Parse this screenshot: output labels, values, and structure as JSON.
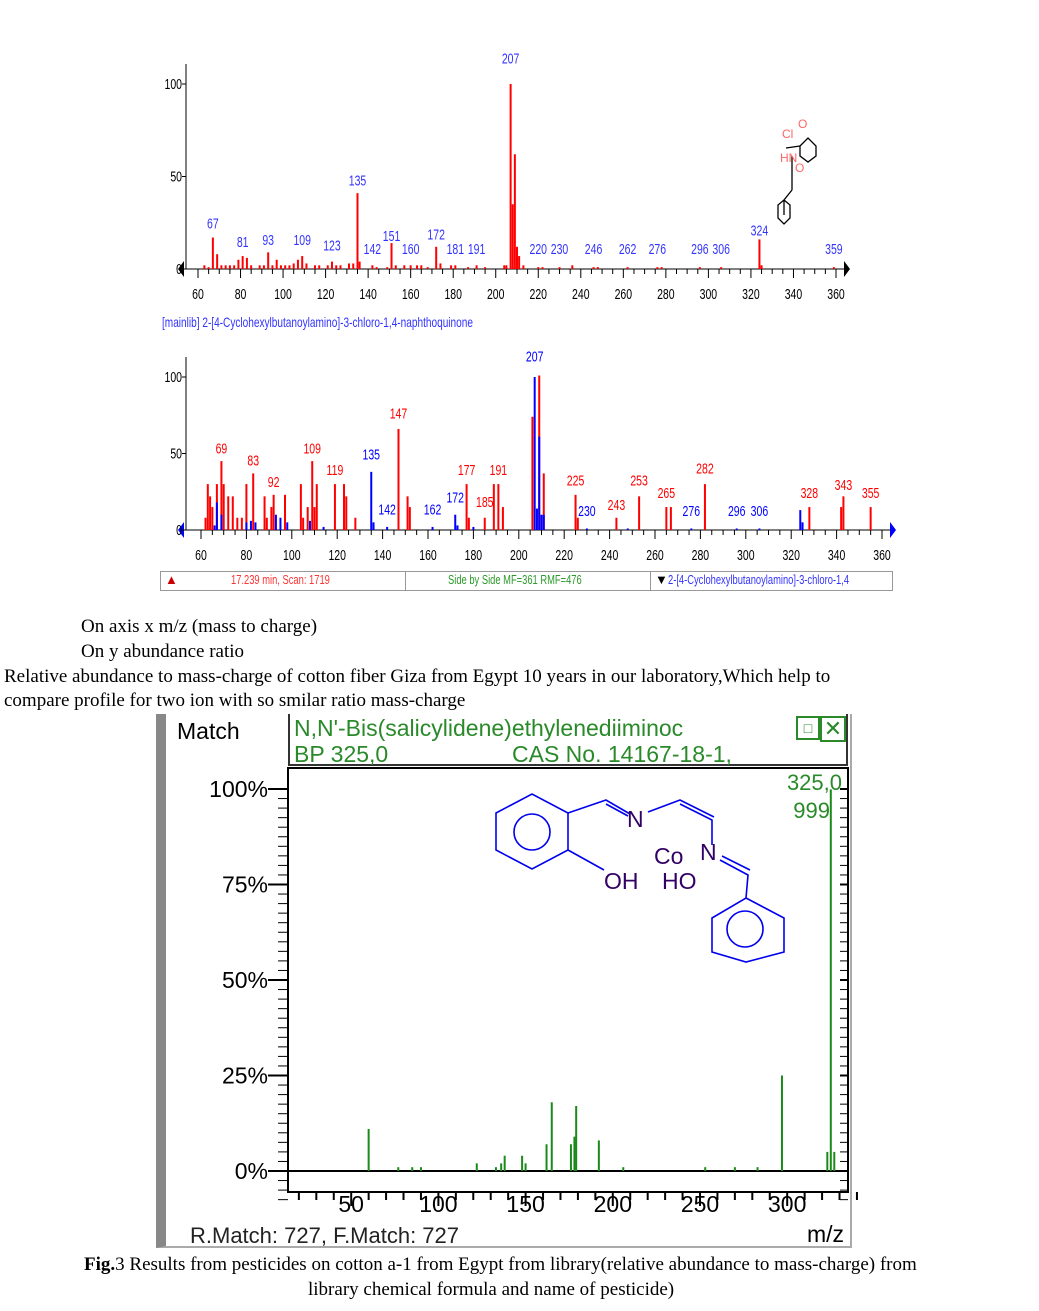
{
  "chart_data": [
    {
      "type": "bar",
      "ylim": [
        0,
        100
      ],
      "xlim": [
        60,
        360
      ],
      "yticks": [
        "0",
        "50",
        "100"
      ],
      "xticks": [
        "60",
        "80",
        "100",
        "120",
        "140",
        "160",
        "180",
        "200",
        "220",
        "240",
        "260",
        "280",
        "300",
        "320",
        "340",
        "360"
      ],
      "caption": "[mainlib] 2-[4-Cyclohexylbutanoylamino]-3-chloro-1,4-naphthoquinone",
      "peaks": [
        [
          63,
          2
        ],
        [
          65,
          1
        ],
        [
          67,
          17
        ],
        [
          69,
          8
        ],
        [
          71,
          2
        ],
        [
          73,
          2
        ],
        [
          75,
          2
        ],
        [
          77,
          2
        ],
        [
          79,
          5
        ],
        [
          81,
          7
        ],
        [
          83,
          6
        ],
        [
          85,
          2
        ],
        [
          89,
          2
        ],
        [
          91,
          2
        ],
        [
          93,
          9
        ],
        [
          95,
          2
        ],
        [
          97,
          5
        ],
        [
          99,
          2
        ],
        [
          101,
          2
        ],
        [
          103,
          2
        ],
        [
          105,
          3
        ],
        [
          107,
          5
        ],
        [
          109,
          7
        ],
        [
          111,
          3
        ],
        [
          115,
          2
        ],
        [
          117,
          2
        ],
        [
          121,
          2
        ],
        [
          123,
          4
        ],
        [
          125,
          2
        ],
        [
          127,
          2
        ],
        [
          131,
          3
        ],
        [
          133,
          3
        ],
        [
          135,
          41
        ],
        [
          136,
          4
        ],
        [
          142,
          2
        ],
        [
          144,
          1
        ],
        [
          149,
          1
        ],
        [
          151,
          14
        ],
        [
          153,
          2
        ],
        [
          157,
          2
        ],
        [
          160,
          2
        ],
        [
          163,
          2
        ],
        [
          165,
          2
        ],
        [
          168,
          1
        ],
        [
          172,
          12
        ],
        [
          174,
          3
        ],
        [
          179,
          2
        ],
        [
          181,
          2
        ],
        [
          187,
          1
        ],
        [
          191,
          2
        ],
        [
          195,
          1
        ],
        [
          204,
          2
        ],
        [
          205,
          2
        ],
        [
          207,
          100
        ],
        [
          208,
          35
        ],
        [
          209,
          62
        ],
        [
          210,
          12
        ],
        [
          211,
          7
        ],
        [
          213,
          2
        ],
        [
          220,
          1
        ],
        [
          222,
          1
        ],
        [
          230,
          1
        ],
        [
          236,
          2
        ],
        [
          246,
          1
        ],
        [
          248,
          1
        ],
        [
          262,
          1
        ],
        [
          276,
          1
        ],
        [
          278,
          1
        ],
        [
          296,
          1
        ],
        [
          306,
          1
        ],
        [
          324,
          16
        ],
        [
          325,
          2
        ],
        [
          359,
          1
        ]
      ],
      "labels": [
        "67",
        "81",
        "93",
        "109",
        "123",
        "135",
        "142",
        "151",
        "160",
        "172",
        "181",
        "191",
        "207",
        "220",
        "230",
        "246",
        "262",
        "276",
        "296",
        "306",
        "324",
        "359"
      ],
      "label_mz": [
        67,
        81,
        93,
        109,
        123,
        135,
        142,
        151,
        160,
        172,
        181,
        191,
        207,
        220,
        230,
        246,
        262,
        276,
        296,
        306,
        324,
        359
      ],
      "label_y": [
        22,
        12,
        13,
        13,
        10,
        45,
        8,
        15,
        8,
        16,
        8,
        8,
        111,
        8,
        8,
        8,
        8,
        8,
        8,
        8,
        18,
        8
      ],
      "bar_color": "#ff0000",
      "label_color": "#3333ff",
      "structure_atoms": [
        "Cl",
        "O",
        "HN",
        "O"
      ]
    },
    {
      "type": "bar",
      "ylim": [
        0,
        100
      ],
      "xlim": [
        60,
        360
      ],
      "yticks": [
        "0",
        "50",
        "100"
      ],
      "xticks": [
        "60",
        "80",
        "100",
        "120",
        "140",
        "160",
        "180",
        "200",
        "220",
        "240",
        "260",
        "280",
        "300",
        "320",
        "340",
        "360"
      ],
      "series": [
        {
          "color": "#ff0000",
          "peaks": [
            [
              62,
              8
            ],
            [
              63,
              30
            ],
            [
              64,
              22
            ],
            [
              65,
              15
            ],
            [
              67,
              30
            ],
            [
              69,
              45
            ],
            [
              70,
              30
            ],
            [
              72,
              22
            ],
            [
              74,
              22
            ],
            [
              76,
              8
            ],
            [
              78,
              8
            ],
            [
              80,
              30
            ],
            [
              83,
              37
            ],
            [
              88,
              22
            ],
            [
              89,
              8
            ],
            [
              91,
              15
            ],
            [
              92,
              23
            ],
            [
              97,
              23
            ],
            [
              104,
              30
            ],
            [
              105,
              8
            ],
            [
              107,
              15
            ],
            [
              109,
              45
            ],
            [
              110,
              15
            ],
            [
              111,
              30
            ],
            [
              119,
              30
            ],
            [
              123,
              30
            ],
            [
              124,
              22
            ],
            [
              128,
              8
            ],
            [
              147,
              66
            ],
            [
              151,
              22
            ],
            [
              152,
              15
            ],
            [
              177,
              30
            ],
            [
              178,
              8
            ],
            [
              185,
              8
            ],
            [
              189,
              30
            ],
            [
              191,
              30
            ],
            [
              193,
              15
            ],
            [
              206,
              74
            ],
            [
              209,
              101
            ],
            [
              211,
              37
            ],
            [
              225,
              23
            ],
            [
              226,
              8
            ],
            [
              243,
              8
            ],
            [
              253,
              22
            ],
            [
              265,
              15
            ],
            [
              267,
              15
            ],
            [
              282,
              30
            ],
            [
              328,
              15
            ],
            [
              342,
              15
            ],
            [
              343,
              22
            ],
            [
              355,
              15
            ]
          ]
        },
        {
          "color": "#0000ff",
          "peaks": [
            [
              66,
              3
            ],
            [
              67,
              18
            ],
            [
              69,
              10
            ],
            [
              80,
              5
            ],
            [
              82,
              6
            ],
            [
              84,
              5
            ],
            [
              93,
              10
            ],
            [
              95,
              8
            ],
            [
              98,
              5
            ],
            [
              108,
              6
            ],
            [
              114,
              2
            ],
            [
              135,
              38
            ],
            [
              136,
              5
            ],
            [
              142,
              2
            ],
            [
              162,
              2
            ],
            [
              172,
              10
            ],
            [
              173,
              3
            ],
            [
              180,
              2
            ],
            [
              207,
              100
            ],
            [
              208,
              14
            ],
            [
              209,
              61
            ],
            [
              210,
              10
            ],
            [
              211,
              10
            ],
            [
              230,
              1
            ],
            [
              248,
              1
            ],
            [
              276,
              1
            ],
            [
              296,
              1
            ],
            [
              306,
              1
            ],
            [
              324,
              13
            ],
            [
              325,
              5
            ]
          ]
        }
      ],
      "labels": [
        {
          "t": "69",
          "mz": 69,
          "y": 50,
          "c": "#ff0000"
        },
        {
          "t": "83",
          "mz": 83,
          "y": 42,
          "c": "#ff0000"
        },
        {
          "t": "92",
          "mz": 92,
          "y": 28,
          "c": "#ff0000"
        },
        {
          "t": "109",
          "mz": 109,
          "y": 50,
          "c": "#ff0000"
        },
        {
          "t": "119",
          "mz": 119,
          "y": 36,
          "c": "#ff0000"
        },
        {
          "t": "135",
          "mz": 135,
          "y": 46,
          "c": "#0000ff"
        },
        {
          "t": "142",
          "mz": 142,
          "y": 10,
          "c": "#0000ff"
        },
        {
          "t": "147",
          "mz": 147,
          "y": 73,
          "c": "#ff0000"
        },
        {
          "t": "162",
          "mz": 162,
          "y": 10,
          "c": "#0000ff"
        },
        {
          "t": "172",
          "mz": 172,
          "y": 18,
          "c": "#0000ff"
        },
        {
          "t": "177",
          "mz": 177,
          "y": 36,
          "c": "#ff0000"
        },
        {
          "t": "185",
          "mz": 185,
          "y": 15,
          "c": "#ff0000"
        },
        {
          "t": "191",
          "mz": 191,
          "y": 36,
          "c": "#ff0000"
        },
        {
          "t": "207",
          "mz": 207,
          "y": 110,
          "c": "#0000ff"
        },
        {
          "t": "225",
          "mz": 225,
          "y": 29,
          "c": "#ff0000"
        },
        {
          "t": "230",
          "mz": 230,
          "y": 9,
          "c": "#0000ff"
        },
        {
          "t": "243",
          "mz": 243,
          "y": 13,
          "c": "#ff0000"
        },
        {
          "t": "253",
          "mz": 253,
          "y": 29,
          "c": "#ff0000"
        },
        {
          "t": "265",
          "mz": 265,
          "y": 21,
          "c": "#ff0000"
        },
        {
          "t": "276",
          "mz": 276,
          "y": 9,
          "c": "#0000ff"
        },
        {
          "t": "282",
          "mz": 282,
          "y": 37,
          "c": "#ff0000"
        },
        {
          "t": "296",
          "mz": 296,
          "y": 9,
          "c": "#0000ff"
        },
        {
          "t": "306",
          "mz": 306,
          "y": 9,
          "c": "#0000ff"
        },
        {
          "t": "328",
          "mz": 328,
          "y": 21,
          "c": "#ff0000"
        },
        {
          "t": "343",
          "mz": 343,
          "y": 26,
          "c": "#ff0000"
        },
        {
          "t": "355",
          "mz": 355,
          "y": 21,
          "c": "#ff0000"
        }
      ]
    },
    {
      "type": "bar",
      "ylim": [
        0,
        100
      ],
      "xlim": [
        15,
        345
      ],
      "yticks": [
        "0%",
        "25%",
        "50%",
        "75%",
        "100%"
      ],
      "xticks": [
        "50",
        "100",
        "150",
        "200",
        "250",
        "300"
      ],
      "xlabel": "m/z",
      "bar_color": "#1a8a1a",
      "peaks": [
        [
          60,
          11
        ],
        [
          77,
          1
        ],
        [
          85,
          1
        ],
        [
          90,
          1
        ],
        [
          122,
          2
        ],
        [
          133,
          1
        ],
        [
          136,
          2
        ],
        [
          138,
          4
        ],
        [
          148,
          4
        ],
        [
          150,
          2
        ],
        [
          162,
          7
        ],
        [
          165,
          18
        ],
        [
          176,
          7
        ],
        [
          178,
          9
        ],
        [
          179,
          17
        ],
        [
          192,
          8
        ],
        [
          206,
          1
        ],
        [
          253,
          1
        ],
        [
          270,
          1
        ],
        [
          283,
          1
        ],
        [
          297,
          25
        ],
        [
          323,
          5
        ],
        [
          325,
          99.9
        ],
        [
          327,
          5
        ]
      ],
      "peak_label": "325,0",
      "peak_value": "999"
    }
  ],
  "status": {
    "left": "17.239 min, Scan: 1719",
    "middle": "Side by Side MF=361 RMF=476",
    "right": "2-[4-Cyclohexylbutanoylamino]-3-chloro-1,4"
  },
  "text": {
    "line1": "On axis x m/z (mass to charge)",
    "line2": "On y abundance ratio",
    "para1": "Relative  abundance  to  mass-charge   of  cotton  fiber  Giza   from  Egypt  10  years    in    our    laboratory,Which  help  to",
    "para2": "compare  profile for two ion with so smilar  ratio  mass-charge"
  },
  "match_panel": {
    "match_label": "Match",
    "name": "N,N'-Bis(salicylidene)ethylenediiminoc",
    "bp": "BP 325,0",
    "cas": "CAS No. 14167-18-1,",
    "restore_icon": "restore-icon",
    "close_icon": "close-icon",
    "atoms": [
      "N",
      "N",
      "OH",
      "Co",
      "HO"
    ],
    "footer": "R.Match: 727, F.Match: 727"
  },
  "caption": {
    "bold": "Fig.",
    "rest": "3  Results from pesticides on cotton a-1 from Egypt from library(relative abundance to mass-charge) from",
    "line2": "library  chemical formula and  name of pesticide)"
  }
}
